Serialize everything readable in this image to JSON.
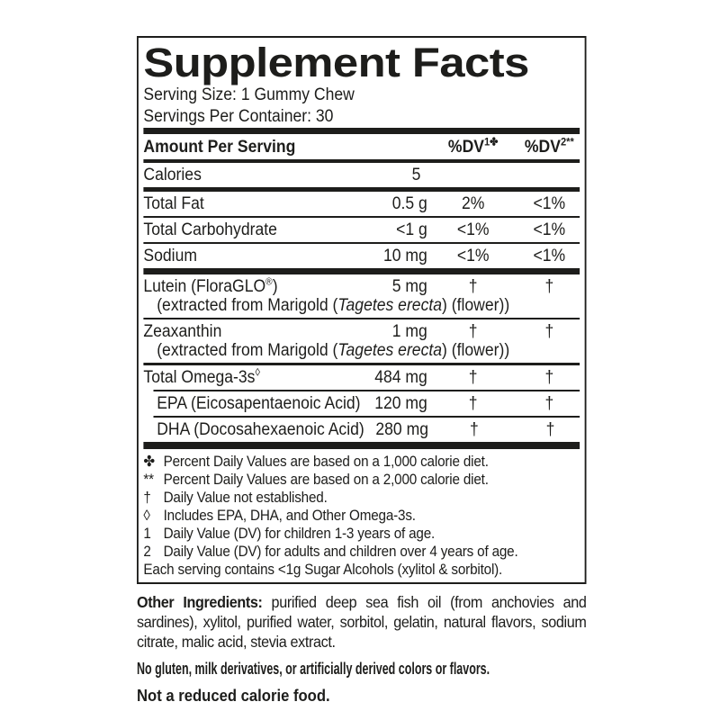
{
  "colors": {
    "ink": "#1d1d1b",
    "background": "#ffffff"
  },
  "title": "Supplement Facts",
  "serving": {
    "size": "Serving Size: 1 Gummy Chew",
    "per_container": "Servings Per Container: 30"
  },
  "table": {
    "header": {
      "amount_label": "Amount Per Serving",
      "dv1_base": "%DV",
      "dv1_sup": "1✤",
      "dv2_base": "%DV",
      "dv2_sup": "2**"
    },
    "rows": [
      {
        "name": "Calories",
        "amount": "5",
        "dv1": "",
        "dv2": ""
      },
      {
        "name": "Total Fat",
        "amount": "0.5 g",
        "dv1": "2%",
        "dv2": "<1%"
      },
      {
        "name": "Total Carbohydrate",
        "amount": "<1 g",
        "dv1": "<1%",
        "dv2": "<1%"
      },
      {
        "name": "Sodium",
        "amount": "10 mg",
        "dv1": "<1%",
        "dv2": "<1%"
      },
      {
        "name_pre": "Lutein (FloraGLO",
        "name_sup": "®",
        "name_post": ")",
        "amount": "5 mg",
        "dv1": "†",
        "dv2": "†",
        "sub_pre": "(extracted from Marigold (",
        "sub_italic": "Tagetes erecta",
        "sub_post": ") (flower))"
      },
      {
        "name": "Zeaxanthin",
        "amount": "1 mg",
        "dv1": "†",
        "dv2": "†",
        "sub_pre": "(extracted from Marigold (",
        "sub_italic": "Tagetes erecta",
        "sub_post": ") (flower))"
      },
      {
        "name_pre": "Total Omega-3s",
        "name_sup": "◊",
        "name_post": "",
        "amount": "484 mg",
        "dv1": "†",
        "dv2": "†"
      },
      {
        "name": "EPA (Eicosapentaenoic Acid)",
        "amount": "120 mg",
        "dv1": "†",
        "dv2": "†"
      },
      {
        "name": "DHA (Docosahexaenoic Acid)",
        "amount": "280 mg",
        "dv1": "†",
        "dv2": "†"
      }
    ]
  },
  "footnotes": [
    {
      "marker": "✤",
      "text": "Percent Daily Values are based on a 1,000 calorie diet."
    },
    {
      "marker": "**",
      "text": "Percent Daily Values are based on a 2,000 calorie diet."
    },
    {
      "marker": "†",
      "text": "Daily Value not established."
    },
    {
      "marker": "◊",
      "text": "Includes EPA, DHA, and Other Omega-3s."
    },
    {
      "marker": "1",
      "text": "Daily Value (DV) for children 1-3 years of age."
    },
    {
      "marker": "2",
      "text": "Daily Value (DV) for adults and children over 4 years of age."
    },
    {
      "marker": "",
      "text": "Each serving contains <1g Sugar Alcohols (xylitol & sorbitol)."
    }
  ],
  "other_ingredients": {
    "label": "Other Ingredients:",
    "text": " purified deep sea fish oil (from anchovies and sardines), xylitol, purified water, sorbitol, gelatin, natural flavors, sodium citrate, malic acid, stevia extract."
  },
  "claims": [
    "No gluten, milk derivatives, or artificially derived colors or flavors.",
    "Not a reduced calorie food."
  ]
}
